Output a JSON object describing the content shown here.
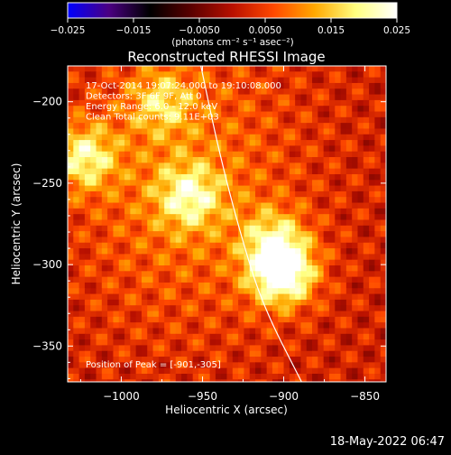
{
  "chart_data": {
    "type": "heatmap",
    "title": "Reconstructed RHESSI Image",
    "xlabel": "Heliocentric X (arcsec)",
    "ylabel": "Heliocentric Y (arcsec)",
    "xlim": [
      -1033,
      -837
    ],
    "ylim": [
      -372,
      -178
    ],
    "xticks": [
      -1000,
      -950,
      -900,
      -850
    ],
    "xtick_labels": [
      "−1000",
      "−950",
      "−900",
      "−850"
    ],
    "yticks": [
      -200,
      -250,
      -300,
      -350
    ],
    "ytick_labels": [
      "−200",
      "−250",
      "−300",
      "−350"
    ],
    "colorbar": {
      "range": [
        -0.025,
        0.025
      ],
      "ticks": [
        -0.025,
        -0.015,
        -0.005,
        0.005,
        0.015,
        0.025
      ],
      "tick_labels": [
        "−0.025",
        "−0.015",
        "−0.0050",
        "0.0050",
        "0.015",
        "0.025"
      ],
      "unit_label": "(photons cm⁻² s⁻¹ asec⁻²)",
      "colormap": [
        "#0000ff",
        "#4b0082",
        "#000000",
        "#5a0000",
        "#b81000",
        "#ff4800",
        "#ffa800",
        "#ffff80",
        "#ffffff"
      ]
    },
    "annotations": [
      "17-Oct-2014 19:07:24.000 to 19:10:08.000",
      "Detectors: 3F 6F 9F, Att 0",
      "Energy Range: 6.0 - 12.0 keV",
      "Clean    Total counts: 9.11E+03"
    ],
    "peak_label": "Position of Peak = [-901,-305]",
    "peak": [
      -901,
      -305
    ],
    "sources": [
      {
        "x": -901,
        "y": -305,
        "value": 0.025
      },
      {
        "x": -906,
        "y": -285,
        "value": 0.012
      },
      {
        "x": -1023,
        "y": -234,
        "value": 0.016
      },
      {
        "x": -958,
        "y": -258,
        "value": 0.014
      },
      {
        "x": -975,
        "y": -200,
        "value": 0.011
      }
    ],
    "limb_curve": [
      [
        -951,
        -178
      ],
      [
        -940,
        -230
      ],
      [
        -927,
        -280
      ],
      [
        -913,
        -325
      ],
      [
        -889,
        -372
      ]
    ],
    "grid": false
  },
  "footer": {
    "timestamp": "18-May-2022 06:47"
  }
}
